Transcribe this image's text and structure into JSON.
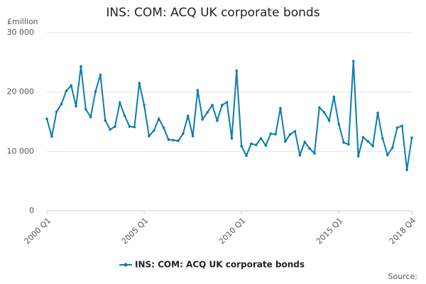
{
  "chart_data": {
    "type": "line",
    "title": "INS: COM: ACQ UK corporate bonds",
    "y_label": "£million",
    "source": "Source:",
    "categories": [
      "2000 Q1",
      null,
      null,
      null,
      null,
      null,
      null,
      null,
      null,
      null,
      null,
      null,
      null,
      null,
      null,
      null,
      null,
      null,
      null,
      null,
      "2005 Q1",
      null,
      null,
      null,
      null,
      null,
      null,
      null,
      null,
      null,
      null,
      null,
      null,
      null,
      null,
      null,
      null,
      null,
      null,
      null,
      "2010 Q1",
      null,
      null,
      null,
      null,
      null,
      null,
      null,
      null,
      null,
      null,
      null,
      null,
      null,
      null,
      null,
      null,
      null,
      null,
      null,
      "2015 Q1",
      null,
      null,
      null,
      null,
      null,
      null,
      null,
      null,
      null,
      null,
      null,
      null,
      null,
      null,
      "2018 Q4"
    ],
    "series": [
      {
        "name": "INS: COM: ACQ UK corporate bonds",
        "color": "#0a7bb0",
        "values": [
          15500,
          12500,
          16700,
          18000,
          20200,
          21100,
          17600,
          24300,
          17100,
          15800,
          20100,
          22900,
          15200,
          13700,
          14200,
          18200,
          16000,
          14200,
          14100,
          21500,
          17800,
          12600,
          13500,
          15500,
          14000,
          12000,
          11900,
          11800,
          13000,
          16000,
          12600,
          20300,
          15400,
          16600,
          17800,
          15200,
          17800,
          18300,
          12200,
          23600,
          10900,
          9300,
          11300,
          11100,
          12200,
          11000,
          13000,
          12900,
          17300,
          11700,
          12900,
          13400,
          9400,
          11600,
          10500,
          9700,
          17400,
          16600,
          15200,
          19200,
          14600,
          11500,
          11200,
          25200,
          9200,
          12400,
          11700,
          10900,
          16500,
          12200,
          9400,
          10600,
          14000,
          14300,
          6900,
          12300
        ]
      }
    ],
    "ylim": [
      0,
      30000
    ],
    "yticks": [
      {
        "value": 0,
        "label": "0"
      },
      {
        "value": 10000,
        "label": "10 000"
      },
      {
        "value": 20000,
        "label": "20 000"
      },
      {
        "value": 30000,
        "label": "30 000"
      }
    ],
    "grid": true,
    "legend": "bottom"
  }
}
